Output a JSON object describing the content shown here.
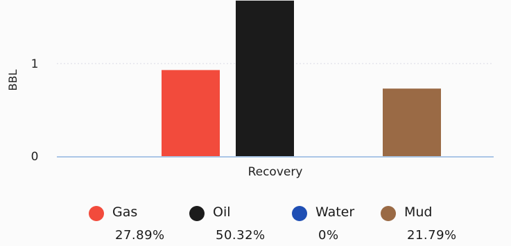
{
  "chart_data": {
    "type": "bar",
    "ylabel": "BBL",
    "xlabel": "Recovery",
    "ylim": [
      0,
      1.6
    ],
    "yticks": [
      {
        "value": 0,
        "label": "0"
      },
      {
        "value": 1,
        "label": "1"
      }
    ],
    "gridlines": [
      1
    ],
    "series": [
      {
        "name": "Gas",
        "value": 0.93,
        "color": "#f24b3c",
        "percent": "27.89%"
      },
      {
        "name": "Oil",
        "value": 1.68,
        "color": "#1b1b1b",
        "percent": "50.32%"
      },
      {
        "name": "Water",
        "value": 0,
        "color": "#1f4fb4",
        "percent": "0%"
      },
      {
        "name": "Mud",
        "value": 0.73,
        "color": "#9a6a45",
        "percent": "21.79%"
      }
    ],
    "legend_position": "bottom"
  }
}
